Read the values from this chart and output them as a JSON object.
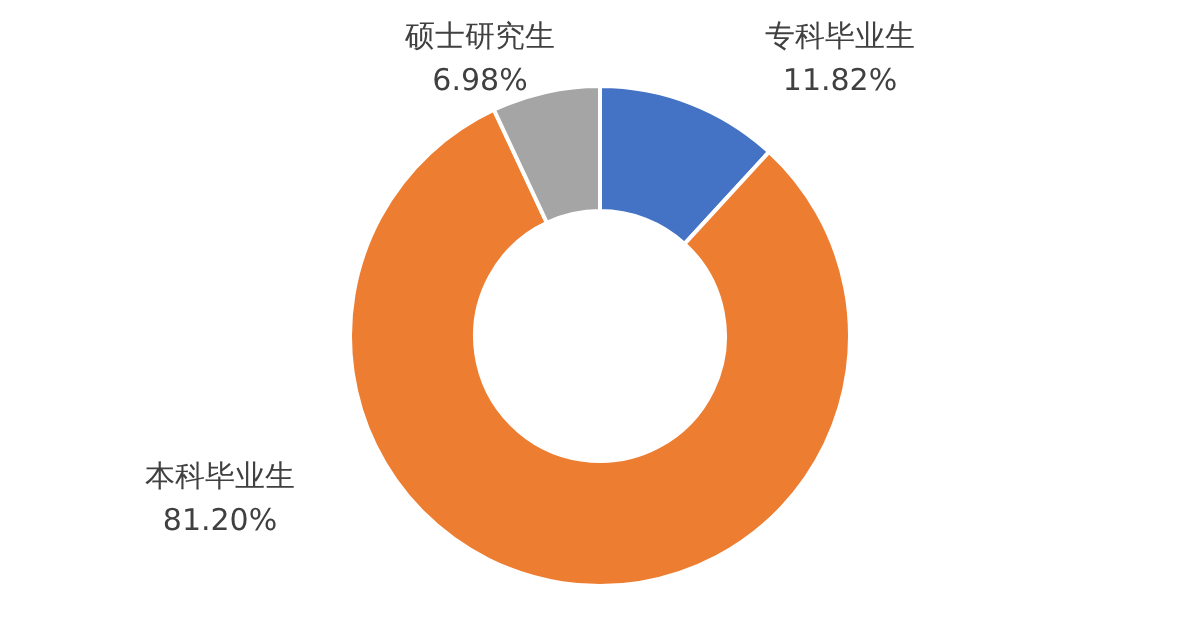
{
  "chart_data": {
    "type": "donut",
    "categories": [
      "专科毕业生",
      "本科毕业生",
      "硕士研究生"
    ],
    "values": [
      11.82,
      81.2,
      6.98
    ],
    "value_labels": [
      "11.82%",
      "81.20%",
      "6.98%"
    ],
    "colors": [
      "#4472c4",
      "#ed7d31",
      "#a5a5a5"
    ],
    "legend": false
  }
}
